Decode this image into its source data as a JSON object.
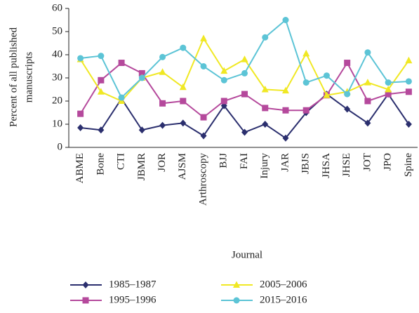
{
  "chart_data": {
    "type": "line",
    "y_label": [
      "Percent of all published",
      "manuscripts"
    ],
    "x_label": "Journal",
    "categories": [
      "ABME",
      "Bone",
      "CTI",
      "JBMR",
      "JOR",
      "AJSM",
      "Arthroscopy",
      "BJJ",
      "FAI",
      "Injury",
      "JAR",
      "JBJS",
      "JHSA",
      "JHSE",
      "JOT",
      "JPO",
      "Spine"
    ],
    "series": [
      {
        "name": "1985–1987",
        "color": "#2b2f6e",
        "marker": "diamond",
        "values": [
          8.5,
          7.5,
          21,
          7.5,
          9.5,
          10.5,
          5,
          18,
          6.5,
          10,
          4,
          15,
          23,
          16.5,
          10.5,
          23,
          10
        ]
      },
      {
        "name": "1995–1996",
        "color": "#b5499c",
        "marker": "square",
        "values": [
          14.5,
          29,
          36.5,
          32,
          19,
          20,
          13,
          20,
          23,
          17,
          16,
          16,
          22.5,
          36.5,
          20,
          23,
          24
        ]
      },
      {
        "name": "2005–2006",
        "color": "#f0e824",
        "marker": "triangle",
        "values": [
          38,
          24,
          20,
          30,
          32.5,
          26,
          47,
          33,
          38,
          25,
          24.5,
          40.5,
          22.5,
          24,
          28,
          25,
          37.5
        ]
      },
      {
        "name": "2015–2016",
        "color": "#5cc4d6",
        "marker": "circle",
        "values": [
          38.5,
          39.5,
          21.5,
          30,
          39,
          43,
          35,
          29,
          32,
          47.5,
          55,
          28,
          31,
          23,
          41,
          28,
          28.5
        ]
      }
    ],
    "ylim": [
      0,
      60
    ],
    "yticks": [
      0,
      10,
      20,
      30,
      40,
      50,
      60
    ],
    "grid": false
  }
}
